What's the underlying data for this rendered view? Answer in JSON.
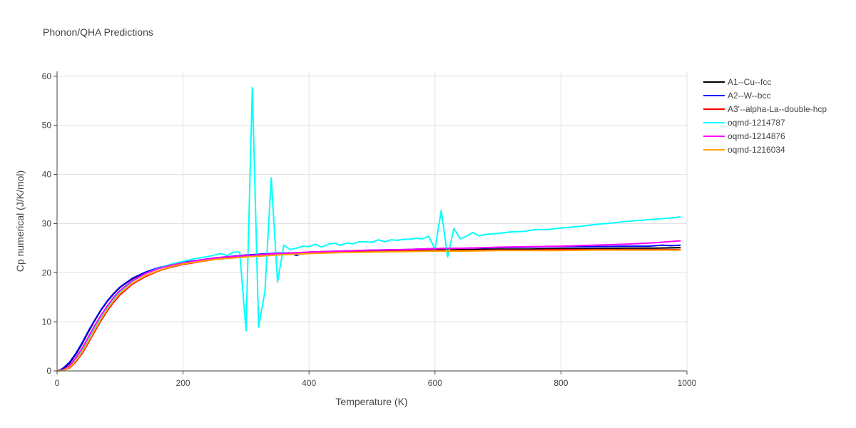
{
  "chart_data": {
    "type": "line",
    "title": "Phonon/QHA Predictions",
    "xlabel": "Temperature (K)",
    "ylabel": "Cp numerical (J/K/mol)",
    "xlim": [
      0,
      1000
    ],
    "ylim": [
      0,
      61
    ],
    "x_ticks": [
      0,
      200,
      400,
      600,
      800,
      1000
    ],
    "y_ticks": [
      0,
      10,
      20,
      30,
      40,
      50,
      60
    ],
    "grid": true,
    "legend_position": "top-right",
    "series": [
      {
        "name": "A1--Cu--fcc",
        "color": "#000000",
        "points": [
          [
            0,
            0
          ],
          [
            10,
            0.4
          ],
          [
            20,
            1.6
          ],
          [
            30,
            3.4
          ],
          [
            40,
            5.6
          ],
          [
            50,
            8.0
          ],
          [
            60,
            10.3
          ],
          [
            70,
            12.4
          ],
          [
            80,
            14.2
          ],
          [
            90,
            15.7
          ],
          [
            100,
            17.0
          ],
          [
            120,
            18.8
          ],
          [
            140,
            20.0
          ],
          [
            160,
            20.9
          ],
          [
            180,
            21.5
          ],
          [
            200,
            22.0
          ],
          [
            250,
            22.9
          ],
          [
            300,
            23.4
          ],
          [
            350,
            23.8
          ],
          [
            370,
            23.9
          ],
          [
            380,
            23.6
          ],
          [
            390,
            24.0
          ],
          [
            400,
            24.1
          ],
          [
            450,
            24.3
          ],
          [
            500,
            24.4
          ],
          [
            550,
            24.5
          ],
          [
            600,
            24.6
          ],
          [
            650,
            24.7
          ],
          [
            700,
            24.8
          ],
          [
            750,
            24.8
          ],
          [
            800,
            24.9
          ],
          [
            850,
            24.9
          ],
          [
            900,
            25.0
          ],
          [
            950,
            25.0
          ],
          [
            990,
            25.1
          ]
        ]
      },
      {
        "name": "A2--W--bcc",
        "color": "#0000ff",
        "points": [
          [
            0,
            0
          ],
          [
            5,
            0.2
          ],
          [
            10,
            0.6
          ],
          [
            20,
            1.8
          ],
          [
            30,
            3.6
          ],
          [
            40,
            5.8
          ],
          [
            50,
            8.2
          ],
          [
            60,
            10.4
          ],
          [
            70,
            12.5
          ],
          [
            80,
            14.3
          ],
          [
            90,
            15.8
          ],
          [
            100,
            17.1
          ],
          [
            120,
            18.9
          ],
          [
            140,
            20.1
          ],
          [
            160,
            21.0
          ],
          [
            180,
            21.6
          ],
          [
            200,
            22.1
          ],
          [
            250,
            23.0
          ],
          [
            300,
            23.6
          ],
          [
            350,
            24.0
          ],
          [
            370,
            24.0
          ],
          [
            380,
            23.5
          ],
          [
            390,
            24.0
          ],
          [
            400,
            24.2
          ],
          [
            450,
            24.4
          ],
          [
            500,
            24.6
          ],
          [
            550,
            24.7
          ],
          [
            600,
            24.9
          ],
          [
            650,
            25.0
          ],
          [
            700,
            25.1
          ],
          [
            750,
            25.2
          ],
          [
            800,
            25.3
          ],
          [
            850,
            25.3
          ],
          [
            900,
            25.4
          ],
          [
            940,
            25.4
          ],
          [
            960,
            25.6
          ],
          [
            975,
            25.5
          ],
          [
            990,
            25.6
          ]
        ]
      },
      {
        "name": "A3'--alpha-La--double-hcp",
        "color": "#ff0000",
        "points": [
          [
            0,
            0
          ],
          [
            10,
            0.1
          ],
          [
            20,
            0.6
          ],
          [
            30,
            1.9
          ],
          [
            40,
            3.6
          ],
          [
            50,
            5.8
          ],
          [
            60,
            8.1
          ],
          [
            70,
            10.3
          ],
          [
            80,
            12.3
          ],
          [
            90,
            14.0
          ],
          [
            100,
            15.5
          ],
          [
            120,
            17.7
          ],
          [
            140,
            19.2
          ],
          [
            160,
            20.3
          ],
          [
            180,
            21.1
          ],
          [
            200,
            21.7
          ],
          [
            250,
            22.7
          ],
          [
            300,
            23.3
          ],
          [
            350,
            23.7
          ],
          [
            400,
            24.0
          ],
          [
            450,
            24.2
          ],
          [
            500,
            24.3
          ],
          [
            550,
            24.4
          ],
          [
            600,
            24.5
          ],
          [
            650,
            24.5
          ],
          [
            700,
            24.6
          ],
          [
            750,
            24.6
          ],
          [
            800,
            24.7
          ],
          [
            850,
            24.7
          ],
          [
            900,
            24.7
          ],
          [
            950,
            24.7
          ],
          [
            990,
            24.7
          ]
        ]
      },
      {
        "name": "oqmd-1214787",
        "color": "#00ffff",
        "points": [
          [
            0,
            0
          ],
          [
            10,
            0.2
          ],
          [
            20,
            0.9
          ],
          [
            30,
            2.4
          ],
          [
            40,
            4.3
          ],
          [
            50,
            6.6
          ],
          [
            60,
            8.9
          ],
          [
            70,
            11.0
          ],
          [
            80,
            13.0
          ],
          [
            90,
            14.7
          ],
          [
            100,
            16.1
          ],
          [
            120,
            18.3
          ],
          [
            140,
            19.8
          ],
          [
            160,
            20.9
          ],
          [
            180,
            21.7
          ],
          [
            200,
            22.3
          ],
          [
            220,
            22.9
          ],
          [
            240,
            23.3
          ],
          [
            260,
            23.9
          ],
          [
            270,
            23.5
          ],
          [
            280,
            24.2
          ],
          [
            290,
            24.2
          ],
          [
            300,
            8.2
          ],
          [
            310,
            57.7
          ],
          [
            320,
            8.9
          ],
          [
            330,
            16.2
          ],
          [
            340,
            39.3
          ],
          [
            350,
            18.1
          ],
          [
            360,
            25.6
          ],
          [
            370,
            24.7
          ],
          [
            380,
            25.0
          ],
          [
            390,
            25.4
          ],
          [
            400,
            25.3
          ],
          [
            410,
            25.8
          ],
          [
            420,
            25.2
          ],
          [
            430,
            25.8
          ],
          [
            440,
            26.0
          ],
          [
            450,
            25.6
          ],
          [
            460,
            26.0
          ],
          [
            470,
            25.9
          ],
          [
            480,
            26.3
          ],
          [
            490,
            26.3
          ],
          [
            500,
            26.2
          ],
          [
            510,
            26.7
          ],
          [
            520,
            26.3
          ],
          [
            530,
            26.7
          ],
          [
            540,
            26.6
          ],
          [
            550,
            26.8
          ],
          [
            560,
            26.8
          ],
          [
            570,
            27.0
          ],
          [
            580,
            26.9
          ],
          [
            590,
            27.4
          ],
          [
            600,
            24.8
          ],
          [
            610,
            32.7
          ],
          [
            620,
            23.2
          ],
          [
            630,
            29.0
          ],
          [
            640,
            26.9
          ],
          [
            650,
            27.4
          ],
          [
            660,
            28.2
          ],
          [
            670,
            27.5
          ],
          [
            680,
            27.8
          ],
          [
            690,
            27.9
          ],
          [
            700,
            28.0
          ],
          [
            720,
            28.3
          ],
          [
            740,
            28.4
          ],
          [
            760,
            28.8
          ],
          [
            780,
            28.8
          ],
          [
            800,
            29.1
          ],
          [
            820,
            29.3
          ],
          [
            840,
            29.6
          ],
          [
            860,
            29.9
          ],
          [
            880,
            30.1
          ],
          [
            900,
            30.4
          ],
          [
            920,
            30.6
          ],
          [
            940,
            30.8
          ],
          [
            960,
            31.0
          ],
          [
            980,
            31.2
          ],
          [
            990,
            31.4
          ]
        ]
      },
      {
        "name": "oqmd-1214876",
        "color": "#ff00ff",
        "points": [
          [
            0,
            0
          ],
          [
            10,
            0.2
          ],
          [
            20,
            1.1
          ],
          [
            30,
            2.7
          ],
          [
            40,
            4.7
          ],
          [
            50,
            7.0
          ],
          [
            60,
            9.3
          ],
          [
            70,
            11.4
          ],
          [
            80,
            13.3
          ],
          [
            90,
            15.0
          ],
          [
            100,
            16.4
          ],
          [
            120,
            18.4
          ],
          [
            140,
            19.8
          ],
          [
            160,
            20.8
          ],
          [
            180,
            21.5
          ],
          [
            200,
            22.0
          ],
          [
            250,
            23.0
          ],
          [
            300,
            23.5
          ],
          [
            350,
            23.9
          ],
          [
            400,
            24.2
          ],
          [
            450,
            24.4
          ],
          [
            500,
            24.6
          ],
          [
            550,
            24.7
          ],
          [
            600,
            24.9
          ],
          [
            650,
            25.0
          ],
          [
            700,
            25.2
          ],
          [
            750,
            25.3
          ],
          [
            800,
            25.4
          ],
          [
            850,
            25.6
          ],
          [
            900,
            25.8
          ],
          [
            950,
            26.1
          ],
          [
            990,
            26.5
          ]
        ]
      },
      {
        "name": "oqmd-1216034",
        "color": "#ffa500",
        "points": [
          [
            0,
            0
          ],
          [
            10,
            0.1
          ],
          [
            20,
            0.7
          ],
          [
            30,
            2.1
          ],
          [
            40,
            3.9
          ],
          [
            50,
            6.1
          ],
          [
            60,
            8.4
          ],
          [
            70,
            10.6
          ],
          [
            80,
            12.6
          ],
          [
            90,
            14.3
          ],
          [
            100,
            15.8
          ],
          [
            120,
            17.9
          ],
          [
            140,
            19.4
          ],
          [
            160,
            20.4
          ],
          [
            180,
            21.2
          ],
          [
            200,
            21.8
          ],
          [
            250,
            22.7
          ],
          [
            300,
            23.2
          ],
          [
            350,
            23.6
          ],
          [
            400,
            23.9
          ],
          [
            450,
            24.1
          ],
          [
            500,
            24.2
          ],
          [
            550,
            24.3
          ],
          [
            600,
            24.4
          ],
          [
            650,
            24.4
          ],
          [
            700,
            24.5
          ],
          [
            750,
            24.5
          ],
          [
            800,
            24.5
          ],
          [
            850,
            24.6
          ],
          [
            900,
            24.6
          ],
          [
            950,
            24.6
          ],
          [
            990,
            24.6
          ]
        ]
      }
    ]
  }
}
